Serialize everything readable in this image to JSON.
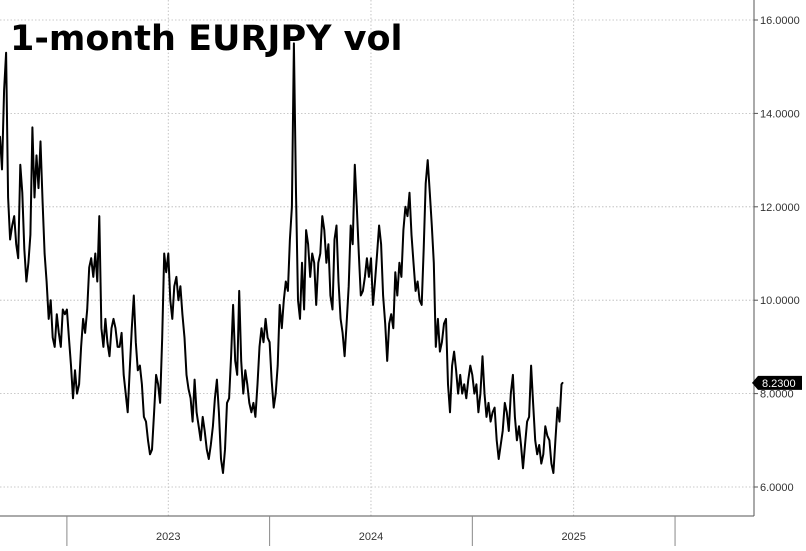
{
  "chart_data": {
    "type": "line",
    "title": "1-month EURJPY vol",
    "xlabel": "",
    "ylabel": "",
    "ylim": [
      5.5,
      16.5
    ],
    "xlim": [
      2022.17,
      2025.85
    ],
    "grid": true,
    "y_ticks": [
      {
        "value": 6,
        "label": "6.0000"
      },
      {
        "value": 8,
        "label": "8.0000"
      },
      {
        "value": 10,
        "label": "10.0000"
      },
      {
        "value": 12,
        "label": "12.0000"
      },
      {
        "value": 14,
        "label": "14.0000"
      },
      {
        "value": 16,
        "label": "16.0000"
      }
    ],
    "x_ticks": [
      {
        "value": 2023.0,
        "label": "2023"
      },
      {
        "value": 2024.0,
        "label": "2024"
      },
      {
        "value": 2025.0,
        "label": "2025"
      }
    ],
    "x_dividers": [
      2022.5,
      2023.5,
      2024.5,
      2025.5
    ],
    "last_value": {
      "value": 8.23,
      "label": "8.2300"
    },
    "series": [
      {
        "values": [
          [
            2022.17,
            13.5
          ],
          [
            2022.18,
            12.8
          ],
          [
            2022.19,
            14.5
          ],
          [
            2022.2,
            15.3
          ],
          [
            2022.21,
            12.2
          ],
          [
            2022.22,
            11.3
          ],
          [
            2022.23,
            11.6
          ],
          [
            2022.24,
            11.8
          ],
          [
            2022.25,
            11.2
          ],
          [
            2022.26,
            10.9
          ],
          [
            2022.27,
            12.9
          ],
          [
            2022.28,
            12.3
          ],
          [
            2022.29,
            11.1
          ],
          [
            2022.3,
            10.4
          ],
          [
            2022.31,
            10.8
          ],
          [
            2022.32,
            11.4
          ],
          [
            2022.33,
            13.7
          ],
          [
            2022.34,
            12.2
          ],
          [
            2022.35,
            13.1
          ],
          [
            2022.36,
            12.4
          ],
          [
            2022.37,
            13.4
          ],
          [
            2022.38,
            12.1
          ],
          [
            2022.39,
            11.0
          ],
          [
            2022.4,
            10.4
          ],
          [
            2022.41,
            9.6
          ],
          [
            2022.42,
            10.0
          ],
          [
            2022.43,
            9.2
          ],
          [
            2022.44,
            9.0
          ],
          [
            2022.45,
            9.7
          ],
          [
            2022.46,
            9.3
          ],
          [
            2022.47,
            9.0
          ],
          [
            2022.48,
            9.8
          ],
          [
            2022.49,
            9.7
          ],
          [
            2022.5,
            9.8
          ],
          [
            2022.51,
            9.2
          ],
          [
            2022.52,
            8.6
          ],
          [
            2022.53,
            7.9
          ],
          [
            2022.54,
            8.5
          ],
          [
            2022.55,
            8.0
          ],
          [
            2022.56,
            8.2
          ],
          [
            2022.57,
            9.0
          ],
          [
            2022.58,
            9.6
          ],
          [
            2022.59,
            9.3
          ],
          [
            2022.6,
            9.8
          ],
          [
            2022.61,
            10.7
          ],
          [
            2022.62,
            10.9
          ],
          [
            2022.63,
            10.5
          ],
          [
            2022.64,
            11.0
          ],
          [
            2022.65,
            10.4
          ],
          [
            2022.66,
            11.8
          ],
          [
            2022.67,
            9.4
          ],
          [
            2022.68,
            9.0
          ],
          [
            2022.69,
            9.6
          ],
          [
            2022.7,
            9.1
          ],
          [
            2022.71,
            8.8
          ],
          [
            2022.72,
            9.4
          ],
          [
            2022.73,
            9.6
          ],
          [
            2022.74,
            9.4
          ],
          [
            2022.75,
            9.0
          ],
          [
            2022.76,
            9.0
          ],
          [
            2022.77,
            9.3
          ],
          [
            2022.78,
            8.4
          ],
          [
            2022.79,
            8.0
          ],
          [
            2022.8,
            7.6
          ],
          [
            2022.81,
            8.5
          ],
          [
            2022.82,
            9.4
          ],
          [
            2022.83,
            10.1
          ],
          [
            2022.84,
            9.1
          ],
          [
            2022.85,
            8.5
          ],
          [
            2022.86,
            8.6
          ],
          [
            2022.87,
            8.2
          ],
          [
            2022.88,
            7.5
          ],
          [
            2022.89,
            7.4
          ],
          [
            2022.9,
            7.0
          ],
          [
            2022.91,
            6.7
          ],
          [
            2022.92,
            6.8
          ],
          [
            2022.93,
            7.6
          ],
          [
            2022.94,
            8.4
          ],
          [
            2022.95,
            8.2
          ],
          [
            2022.96,
            7.8
          ],
          [
            2022.97,
            9.2
          ],
          [
            2022.98,
            11.0
          ],
          [
            2022.99,
            10.6
          ],
          [
            2023.0,
            11.0
          ],
          [
            2023.01,
            10.0
          ],
          [
            2023.02,
            9.6
          ],
          [
            2023.03,
            10.3
          ],
          [
            2023.04,
            10.5
          ],
          [
            2023.05,
            10.0
          ],
          [
            2023.06,
            10.3
          ],
          [
            2023.07,
            9.7
          ],
          [
            2023.08,
            9.2
          ],
          [
            2023.09,
            8.4
          ],
          [
            2023.1,
            8.1
          ],
          [
            2023.11,
            7.9
          ],
          [
            2023.12,
            7.4
          ],
          [
            2023.13,
            8.3
          ],
          [
            2023.14,
            7.6
          ],
          [
            2023.15,
            7.3
          ],
          [
            2023.16,
            7.0
          ],
          [
            2023.17,
            7.5
          ],
          [
            2023.18,
            7.2
          ],
          [
            2023.19,
            6.8
          ],
          [
            2023.2,
            6.6
          ],
          [
            2023.21,
            6.9
          ],
          [
            2023.22,
            7.3
          ],
          [
            2023.23,
            7.9
          ],
          [
            2023.24,
            8.3
          ],
          [
            2023.25,
            7.6
          ],
          [
            2023.26,
            6.6
          ],
          [
            2023.27,
            6.3
          ],
          [
            2023.28,
            6.8
          ],
          [
            2023.29,
            7.8
          ],
          [
            2023.3,
            7.9
          ],
          [
            2023.31,
            8.8
          ],
          [
            2023.32,
            9.9
          ],
          [
            2023.33,
            8.7
          ],
          [
            2023.34,
            8.4
          ],
          [
            2023.35,
            10.2
          ],
          [
            2023.36,
            8.7
          ],
          [
            2023.37,
            8.0
          ],
          [
            2023.38,
            8.5
          ],
          [
            2023.39,
            8.2
          ],
          [
            2023.4,
            7.8
          ],
          [
            2023.41,
            7.6
          ],
          [
            2023.42,
            7.8
          ],
          [
            2023.43,
            7.5
          ],
          [
            2023.44,
            8.2
          ],
          [
            2023.45,
            9.0
          ],
          [
            2023.46,
            9.4
          ],
          [
            2023.47,
            9.1
          ],
          [
            2023.48,
            9.6
          ],
          [
            2023.49,
            9.2
          ],
          [
            2023.5,
            9.1
          ],
          [
            2023.51,
            8.3
          ],
          [
            2023.52,
            7.7
          ],
          [
            2023.53,
            8.0
          ],
          [
            2023.54,
            8.6
          ],
          [
            2023.55,
            9.9
          ],
          [
            2023.56,
            9.4
          ],
          [
            2023.57,
            10.0
          ],
          [
            2023.58,
            10.4
          ],
          [
            2023.59,
            10.2
          ],
          [
            2023.6,
            11.3
          ],
          [
            2023.61,
            12.0
          ],
          [
            2023.62,
            15.5
          ],
          [
            2023.63,
            12.3
          ],
          [
            2023.64,
            10.0
          ],
          [
            2023.65,
            9.6
          ],
          [
            2023.66,
            10.8
          ],
          [
            2023.67,
            9.8
          ],
          [
            2023.68,
            11.5
          ],
          [
            2023.69,
            11.2
          ],
          [
            2023.7,
            10.5
          ],
          [
            2023.71,
            11.0
          ],
          [
            2023.72,
            10.8
          ],
          [
            2023.73,
            9.9
          ],
          [
            2023.74,
            10.8
          ],
          [
            2023.75,
            11.0
          ],
          [
            2023.76,
            11.8
          ],
          [
            2023.77,
            11.5
          ],
          [
            2023.78,
            10.8
          ],
          [
            2023.79,
            11.2
          ],
          [
            2023.8,
            10.1
          ],
          [
            2023.81,
            9.8
          ],
          [
            2023.82,
            11.3
          ],
          [
            2023.83,
            11.6
          ],
          [
            2023.84,
            10.4
          ],
          [
            2023.85,
            9.6
          ],
          [
            2023.86,
            9.3
          ],
          [
            2023.87,
            8.8
          ],
          [
            2023.88,
            9.5
          ],
          [
            2023.89,
            10.3
          ],
          [
            2023.9,
            11.6
          ],
          [
            2023.91,
            11.2
          ],
          [
            2023.92,
            12.9
          ],
          [
            2023.93,
            12.0
          ],
          [
            2023.94,
            11.0
          ],
          [
            2023.95,
            10.1
          ],
          [
            2023.96,
            10.2
          ],
          [
            2023.97,
            10.5
          ],
          [
            2023.98,
            10.9
          ],
          [
            2023.99,
            10.5
          ],
          [
            2024.0,
            10.9
          ],
          [
            2024.01,
            9.9
          ],
          [
            2024.02,
            10.4
          ],
          [
            2024.03,
            11.0
          ],
          [
            2024.04,
            11.6
          ],
          [
            2024.05,
            11.2
          ],
          [
            2024.06,
            10.1
          ],
          [
            2024.07,
            9.5
          ],
          [
            2024.08,
            8.7
          ],
          [
            2024.09,
            9.5
          ],
          [
            2024.1,
            9.7
          ],
          [
            2024.11,
            9.4
          ],
          [
            2024.12,
            10.6
          ],
          [
            2024.13,
            10.1
          ],
          [
            2024.14,
            10.8
          ],
          [
            2024.15,
            10.5
          ],
          [
            2024.16,
            11.5
          ],
          [
            2024.17,
            12.0
          ],
          [
            2024.18,
            11.8
          ],
          [
            2024.19,
            12.3
          ],
          [
            2024.2,
            11.4
          ],
          [
            2024.21,
            10.8
          ],
          [
            2024.22,
            10.2
          ],
          [
            2024.23,
            10.4
          ],
          [
            2024.24,
            10.0
          ],
          [
            2024.25,
            9.9
          ],
          [
            2024.26,
            11.1
          ],
          [
            2024.27,
            12.5
          ],
          [
            2024.28,
            13.0
          ],
          [
            2024.29,
            12.3
          ],
          [
            2024.3,
            11.6
          ],
          [
            2024.31,
            10.8
          ],
          [
            2024.32,
            9.0
          ],
          [
            2024.33,
            9.6
          ],
          [
            2024.34,
            8.9
          ],
          [
            2024.35,
            9.1
          ],
          [
            2024.36,
            9.5
          ],
          [
            2024.37,
            9.6
          ],
          [
            2024.38,
            8.2
          ],
          [
            2024.39,
            7.6
          ],
          [
            2024.4,
            8.6
          ],
          [
            2024.41,
            8.9
          ],
          [
            2024.42,
            8.5
          ],
          [
            2024.43,
            8.0
          ],
          [
            2024.44,
            8.4
          ],
          [
            2024.45,
            8.0
          ],
          [
            2024.46,
            8.2
          ],
          [
            2024.47,
            7.9
          ],
          [
            2024.48,
            8.3
          ],
          [
            2024.49,
            8.6
          ],
          [
            2024.5,
            8.4
          ],
          [
            2024.51,
            8.0
          ],
          [
            2024.52,
            8.2
          ],
          [
            2024.53,
            7.6
          ],
          [
            2024.54,
            8.0
          ],
          [
            2024.55,
            8.8
          ],
          [
            2024.56,
            8.0
          ],
          [
            2024.57,
            7.5
          ],
          [
            2024.58,
            7.8
          ],
          [
            2024.59,
            7.4
          ],
          [
            2024.6,
            7.6
          ],
          [
            2024.61,
            7.7
          ],
          [
            2024.62,
            7.0
          ],
          [
            2024.63,
            6.6
          ],
          [
            2024.64,
            6.9
          ],
          [
            2024.65,
            7.2
          ],
          [
            2024.66,
            7.8
          ],
          [
            2024.67,
            7.6
          ],
          [
            2024.68,
            7.2
          ],
          [
            2024.69,
            8.0
          ],
          [
            2024.7,
            8.4
          ],
          [
            2024.71,
            7.5
          ],
          [
            2024.72,
            7.0
          ],
          [
            2024.73,
            7.3
          ],
          [
            2024.74,
            6.9
          ],
          [
            2024.75,
            6.4
          ],
          [
            2024.76,
            6.9
          ],
          [
            2024.77,
            7.4
          ],
          [
            2024.78,
            7.5
          ],
          [
            2024.79,
            8.6
          ],
          [
            2024.8,
            7.8
          ],
          [
            2024.81,
            7.0
          ],
          [
            2024.82,
            6.7
          ],
          [
            2024.83,
            6.9
          ],
          [
            2024.84,
            6.5
          ],
          [
            2024.85,
            6.7
          ],
          [
            2024.86,
            7.3
          ],
          [
            2024.87,
            7.1
          ],
          [
            2024.88,
            7.0
          ],
          [
            2024.89,
            6.5
          ],
          [
            2024.9,
            6.3
          ],
          [
            2024.91,
            7.0
          ],
          [
            2024.92,
            7.7
          ],
          [
            2024.93,
            7.4
          ],
          [
            2024.94,
            8.2
          ],
          [
            2024.945,
            8.23
          ]
        ]
      }
    ]
  }
}
